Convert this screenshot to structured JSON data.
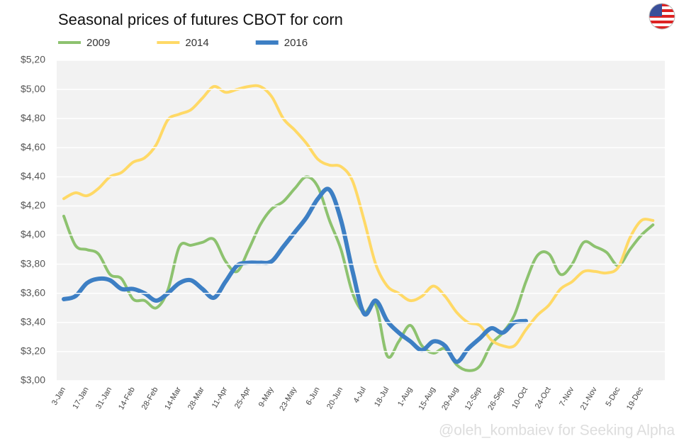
{
  "chart_data": {
    "type": "line",
    "title": "Seasonal prices of futures CBOT for corn",
    "watermark": "@oleh_kombaiev for Seeking Alpha",
    "categories": [
      "3-Jan",
      null,
      "17-Jan",
      null,
      "31-Jan",
      null,
      "14-Feb",
      null,
      "28-Feb",
      null,
      "14-Mar",
      null,
      "28-Mar",
      null,
      "11-Apr",
      null,
      "25-Apr",
      null,
      "9-May",
      null,
      "23-May",
      null,
      "6-Jun",
      null,
      "20-Jun",
      null,
      "4-Jul",
      null,
      "18-Jul",
      null,
      "1-Aug",
      null,
      "15-Aug",
      null,
      "29-Aug",
      null,
      "12-Sep",
      null,
      "26-Sep",
      null,
      "10-Oct",
      null,
      "24-Oct",
      null,
      "7-Nov",
      null,
      "21-Nov",
      null,
      "5-Dec",
      null,
      "19-Dec",
      null
    ],
    "series": [
      {
        "name": "2009",
        "color": "#8dc26f",
        "width": 4,
        "values": [
          4.13,
          3.93,
          3.9,
          3.87,
          3.73,
          3.7,
          3.56,
          3.55,
          3.5,
          3.62,
          3.92,
          3.93,
          3.95,
          3.97,
          3.82,
          3.75,
          3.9,
          4.07,
          4.18,
          4.23,
          4.32,
          4.4,
          4.33,
          4.1,
          3.9,
          3.6,
          3.47,
          3.52,
          3.17,
          3.27,
          3.38,
          3.24,
          3.19,
          3.22,
          3.11,
          3.07,
          3.1,
          3.25,
          3.33,
          3.45,
          3.68,
          3.86,
          3.87,
          3.73,
          3.8,
          3.95,
          3.92,
          3.88,
          3.79,
          3.9,
          4.0,
          4.07
        ]
      },
      {
        "name": "2014",
        "color": "#ffd966",
        "width": 4,
        "values": [
          4.25,
          4.29,
          4.27,
          4.32,
          4.4,
          4.43,
          4.5,
          4.53,
          4.62,
          4.79,
          4.83,
          4.86,
          4.94,
          5.02,
          4.98,
          5.0,
          5.02,
          5.02,
          4.95,
          4.8,
          4.72,
          4.63,
          4.52,
          4.48,
          4.47,
          4.37,
          4.1,
          3.8,
          3.65,
          3.6,
          3.55,
          3.58,
          3.65,
          3.58,
          3.47,
          3.4,
          3.38,
          3.28,
          3.24,
          3.24,
          3.35,
          3.45,
          3.52,
          3.63,
          3.68,
          3.75,
          3.75,
          3.74,
          3.78,
          3.98,
          4.1,
          4.1
        ]
      },
      {
        "name": "2016",
        "color": "#3d7fc4",
        "width": 6,
        "values": [
          3.56,
          3.58,
          3.67,
          3.7,
          3.69,
          3.63,
          3.63,
          3.6,
          3.55,
          3.6,
          3.67,
          3.69,
          3.63,
          3.57,
          3.68,
          3.79,
          3.81,
          3.81,
          3.82,
          3.92,
          4.02,
          4.12,
          4.25,
          4.31,
          4.1,
          3.75,
          3.46,
          3.55,
          3.41,
          3.33,
          3.27,
          3.21,
          3.27,
          3.24,
          3.13,
          3.22,
          3.29,
          3.36,
          3.33,
          3.4,
          3.41,
          null,
          null,
          null,
          null,
          null,
          null,
          null,
          null,
          null,
          null,
          null
        ]
      }
    ],
    "ylim": [
      3.0,
      5.2
    ],
    "yticks": [
      {
        "value": 3.0,
        "label": "$3,00"
      },
      {
        "value": 3.2,
        "label": "$3,20"
      },
      {
        "value": 3.4,
        "label": "$3,40"
      },
      {
        "value": 3.6,
        "label": "$3,60"
      },
      {
        "value": 3.8,
        "label": "$3,80"
      },
      {
        "value": 4.0,
        "label": "$4,00"
      },
      {
        "value": 4.2,
        "label": "$4,20"
      },
      {
        "value": 4.4,
        "label": "$4,40"
      },
      {
        "value": 4.6,
        "label": "$4,60"
      },
      {
        "value": 4.8,
        "label": "$4,80"
      },
      {
        "value": 5.0,
        "label": "$5,00"
      },
      {
        "value": 5.2,
        "label": "$5,20"
      }
    ],
    "grid": true
  }
}
